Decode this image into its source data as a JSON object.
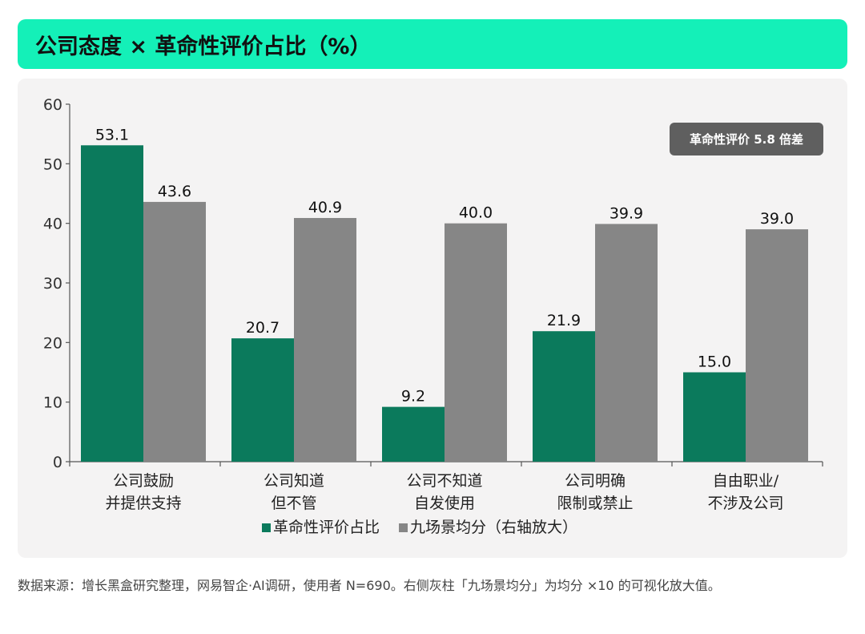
{
  "header": {
    "title": "公司态度 × 革命性评价占比（%）"
  },
  "note": {
    "text": "革命性评价 5.8 倍差"
  },
  "source": {
    "text": "数据来源：增长黑盒研究整理，网易智企·AI调研，使用者 N=690。右侧灰柱「九场景均分」为均分 ×10 的可视化放大值。"
  },
  "colors": {
    "header_bg": "#14f0b8",
    "primary": "#0b7a5c",
    "secondary": "#868686",
    "note_bg": "#5f5f5f"
  },
  "chart_data": {
    "type": "bar",
    "categories": [
      [
        "公司鼓励",
        "并提供支持"
      ],
      [
        "公司知道",
        "但不管"
      ],
      [
        "公司不知道",
        "自发使用"
      ],
      [
        "公司明确",
        "限制或禁止"
      ],
      [
        "自由职业/",
        "不涉及公司"
      ]
    ],
    "series": [
      {
        "name": "革命性评价占比",
        "values": [
          53.1,
          20.7,
          9.2,
          21.9,
          15.0
        ],
        "labels": [
          "53.1",
          "20.7",
          "9.2",
          "21.9",
          "15.0"
        ]
      },
      {
        "name": "九场景均分（右轴放大）",
        "values": [
          43.6,
          40.9,
          40.0,
          39.9,
          39.0
        ],
        "labels": [
          "43.6",
          "40.9",
          "40.0",
          "39.9",
          "39.0"
        ]
      }
    ],
    "ylim": [
      0,
      60
    ],
    "yticks": [
      0,
      10,
      20,
      30,
      40,
      50,
      60
    ],
    "legend": "bottom-center",
    "grid": false
  }
}
